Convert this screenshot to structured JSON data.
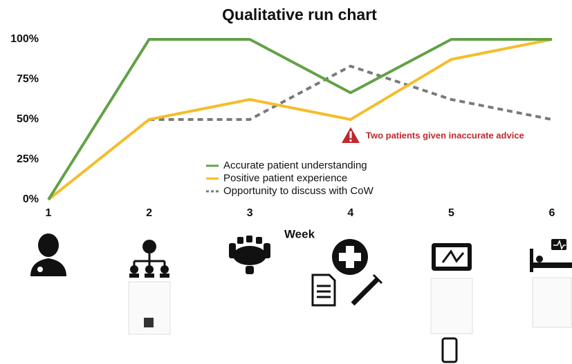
{
  "chart_data": {
    "type": "line",
    "title": "Qualitative run chart",
    "x_label": "Week",
    "x": [
      1,
      2,
      3,
      4,
      5,
      6
    ],
    "xlim": [
      1,
      6
    ],
    "xticks": [
      1,
      2,
      3,
      4,
      5,
      6
    ],
    "ylim": [
      0,
      100
    ],
    "yticks": [
      {
        "value": 0,
        "label": "0%"
      },
      {
        "value": 25,
        "label": "25%"
      },
      {
        "value": 50,
        "label": "50%"
      },
      {
        "value": 75,
        "label": "75%"
      },
      {
        "value": 100,
        "label": "100%"
      }
    ],
    "series": [
      {
        "name": "Accurate patient understanding",
        "color": "#62a146",
        "dash": false,
        "values": [
          0,
          100,
          100,
          66.7,
          100,
          100
        ]
      },
      {
        "name": "Positive patient experience",
        "color": "#f5bd2a",
        "dash": false,
        "values": [
          0,
          50,
          62.5,
          50,
          87.5,
          100
        ]
      },
      {
        "name": "Opportunity to discuss with CoW",
        "color": "#7a7a7a",
        "dash": true,
        "values": [
          null,
          50,
          50,
          83.3,
          62.5,
          50
        ]
      }
    ],
    "annotation": "Two patients given inaccurate advice"
  }
}
